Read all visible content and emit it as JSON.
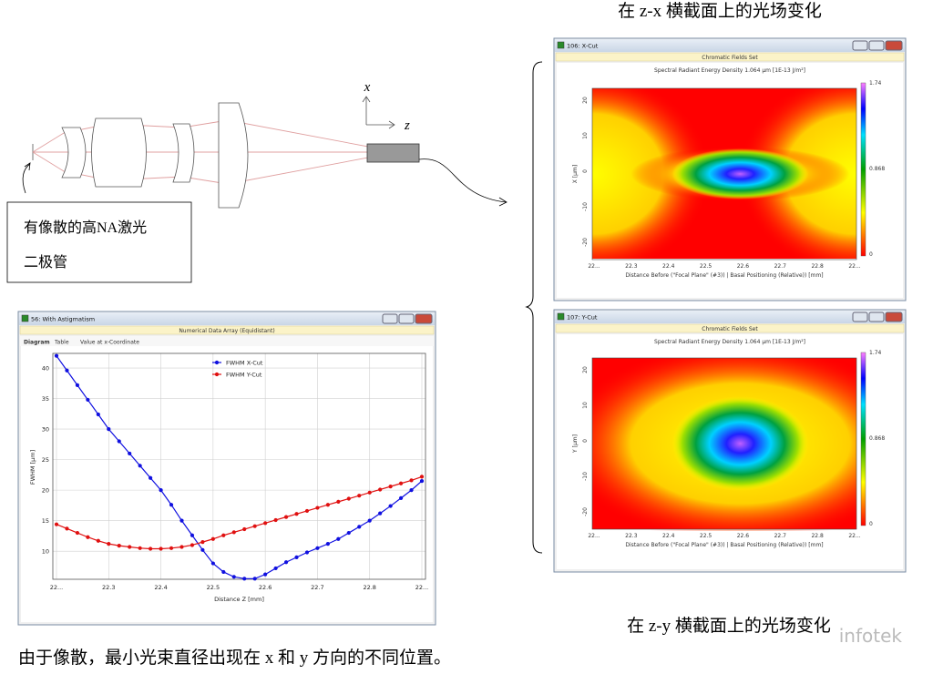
{
  "captions": {
    "top": "在 z-x 横截面上的光场变化",
    "bottom": "在 z-y 横截面上的光场变化",
    "footer": "由于像散，最小光束直径出现在 x 和 y 方向的不同位置。"
  },
  "diagram": {
    "x_label": "x",
    "z_label": "z",
    "source_label": [
      "有像散的高NA激光",
      "二极管"
    ]
  },
  "fwhm_window": {
    "title": "56: With Astigmatism",
    "subtitle": "Numerical Data Array (Equidistant)",
    "tabs": [
      "Diagram",
      "Table",
      "Value at x-Coordinate"
    ],
    "chart_data": {
      "type": "line",
      "xlabel": "Distance Z [mm]",
      "ylabel": "FWHM [µm]",
      "x": [
        22.2,
        22.22,
        22.24,
        22.26,
        22.28,
        22.3,
        22.32,
        22.34,
        22.36,
        22.38,
        22.4,
        22.42,
        22.44,
        22.46,
        22.48,
        22.5,
        22.52,
        22.54,
        22.56,
        22.58,
        22.6,
        22.62,
        22.64,
        22.66,
        22.68,
        22.7,
        22.72,
        22.74,
        22.76,
        22.78,
        22.8,
        22.82,
        22.84,
        22.86,
        22.88,
        22.9
      ],
      "series": [
        {
          "name": "FWHM X-Cut",
          "color": "#1010e0",
          "values": [
            42.0,
            39.6,
            37.2,
            34.8,
            32.4,
            30.0,
            28.0,
            26.0,
            24.0,
            22.0,
            20.0,
            17.6,
            15.0,
            12.6,
            10.2,
            8.0,
            6.6,
            5.8,
            5.5,
            5.5,
            6.2,
            7.2,
            8.2,
            9.0,
            9.8,
            10.5,
            11.2,
            12.0,
            13.0,
            14.0,
            15.0,
            16.2,
            17.4,
            18.7,
            20.0,
            21.5
          ]
        },
        {
          "name": "FWHM Y-Cut",
          "color": "#e01010",
          "values": [
            14.4,
            13.7,
            13.0,
            12.3,
            11.7,
            11.2,
            10.9,
            10.7,
            10.5,
            10.4,
            10.4,
            10.5,
            10.7,
            11.0,
            11.5,
            12.0,
            12.6,
            13.1,
            13.6,
            14.1,
            14.6,
            15.1,
            15.6,
            16.1,
            16.6,
            17.1,
            17.6,
            18.1,
            18.6,
            19.1,
            19.6,
            20.1,
            20.6,
            21.1,
            21.6,
            22.2
          ]
        }
      ],
      "xlim": [
        22.2,
        22.9
      ],
      "ylim": [
        5.4,
        42.1
      ],
      "xticks": [
        {
          "value": 22.2,
          "label": "22..."
        },
        22.3,
        22.4,
        22.5,
        22.6,
        22.7,
        22.8,
        {
          "value": 22.9,
          "label": "22..."
        }
      ],
      "yticks": [
        10,
        15,
        20,
        25,
        30,
        35,
        40
      ],
      "grid": true
    }
  },
  "field_windows": [
    {
      "title": "106: X-Cut",
      "header": "Chromatic Fields Set",
      "subtitle": "Spectral Radiant Energy Density 1.064 µm  [1E-13 J/m²]",
      "xlabel": "Distance Before (\"Focal Plane\" (#3)) | Basal Positioning (Relative)) [mm]",
      "ylabel": "X [µm]",
      "xtick_labels": [
        "22...",
        "22.3",
        "22.4",
        "22.5",
        "22.6",
        "22.7",
        "22.8",
        "22..."
      ],
      "ytick_labels": [
        "20",
        "10",
        "0",
        "-10",
        "-20"
      ],
      "colorbar_labels": [
        "1.74",
        "0.868",
        "0"
      ]
    },
    {
      "title": "107: Y-Cut",
      "header": "Chromatic Fields Set",
      "subtitle": "Spectral Radiant Energy Density 1.064 µm  [1E-13 J/m²]",
      "xlabel": "Distance Before (\"Focal Plane\" (#3)) | Basal Positioning (Relative)) [mm]",
      "ylabel": "Y [µm]",
      "xtick_labels": [
        "22...",
        "22.3",
        "22.4",
        "22.5",
        "22.6",
        "22.7",
        "22.8",
        "22..."
      ],
      "ytick_labels": [
        "20",
        "10",
        "0",
        "-10",
        "-20"
      ],
      "colorbar_labels": [
        "1.74",
        "0.868",
        "0"
      ]
    }
  ],
  "watermark": "infotek"
}
